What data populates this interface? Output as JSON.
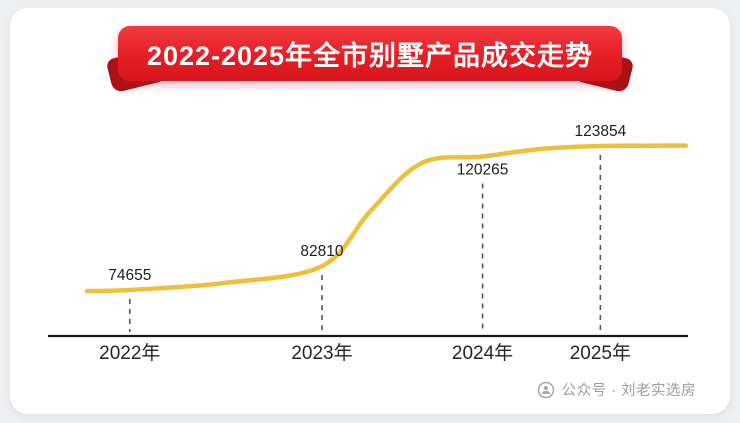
{
  "banner": {
    "title": "2022-2025年全市别墅产品成交走势"
  },
  "watermark": {
    "icon": "wechat-official-account-icon",
    "text": "公众号 · 刘老实选房"
  },
  "colors": {
    "banner_red": "#e51e25",
    "banner_red_dark": "#a81117",
    "curve_gold": "#f0be3d",
    "axis": "#1a1a1a",
    "axis_label": "#262626",
    "label": "#1d1d1d",
    "guide": "#555555",
    "watermark_gray": "#9d9d9d",
    "card_bg": "#ffffff",
    "page_bg": "#eff0f2"
  },
  "chart_data": {
    "type": "line",
    "title": "2022-2025年全市别墅产品成交走势",
    "categories": [
      "2022年",
      "2023年",
      "2024年",
      "2025年"
    ],
    "values": [
      74655,
      82810,
      120265,
      123854
    ],
    "value_labels": [
      "74655",
      "82810",
      "120265",
      "123854"
    ],
    "xlabel": "",
    "ylabel": "",
    "y_axis_visible": false,
    "grid": false,
    "legend": false,
    "curve_style": "smooth-sigmoid",
    "guide_lines": "dashed-vertical",
    "line_color": "#f0be3d"
  }
}
